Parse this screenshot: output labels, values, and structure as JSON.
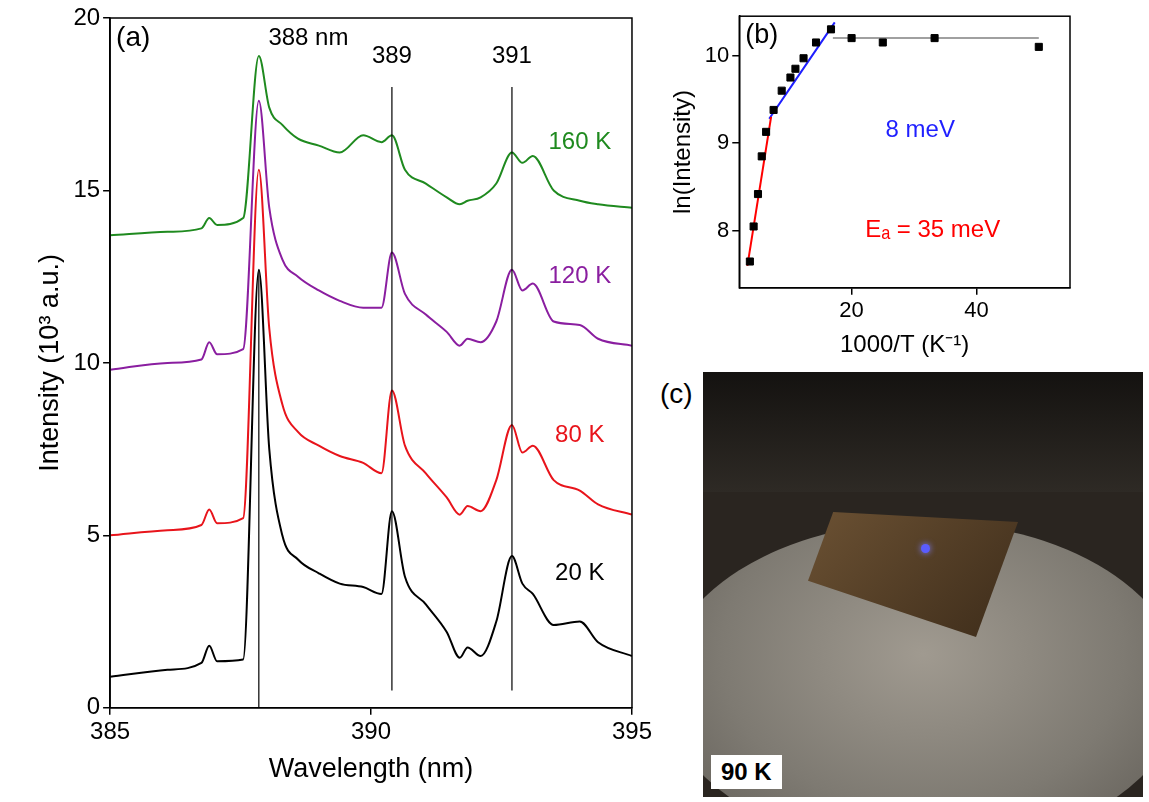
{
  "chart_data": [
    {
      "panel_label": "(a)",
      "type": "line",
      "x_label": "Wavelength (nm)",
      "y_label": "Intensity (10³ a.u.)",
      "x": [
        385,
        386.1,
        386.75,
        386.9,
        387.05,
        387.55,
        387.85,
        388.05,
        388.3,
        388.6,
        389.0,
        389.4,
        389.85,
        390.2,
        390.4,
        390.65,
        391.05,
        391.45,
        391.7,
        391.85,
        392.1,
        392.4,
        392.7,
        392.9,
        393.1,
        393.5,
        394.0,
        394.35,
        395
      ],
      "series": [
        {
          "name": "20 K",
          "color": "#000000",
          "values": [
            0.9,
            1.1,
            1.3,
            1.8,
            1.35,
            1.4,
            12.7,
            7.5,
            5.0,
            4.3,
            3.9,
            3.6,
            3.5,
            3.3,
            5.7,
            3.8,
            3.0,
            2.2,
            1.45,
            1.75,
            1.5,
            2.5,
            4.4,
            3.6,
            3.3,
            2.4,
            2.5,
            1.9,
            1.5
          ]
        },
        {
          "name": "80 K",
          "color": "#e8141b",
          "values": [
            5.0,
            5.15,
            5.3,
            5.75,
            5.35,
            5.5,
            15.6,
            11.0,
            8.8,
            8.0,
            7.6,
            7.3,
            7.1,
            6.8,
            9.2,
            7.6,
            6.8,
            6.1,
            5.6,
            5.85,
            5.7,
            6.6,
            8.2,
            7.4,
            7.6,
            6.6,
            6.3,
            5.9,
            5.6
          ]
        },
        {
          "name": "120 K",
          "color": "#8a1ea0",
          "values": [
            9.8,
            10.0,
            10.1,
            10.6,
            10.25,
            10.4,
            17.6,
            14.5,
            13.0,
            12.5,
            12.1,
            11.8,
            11.6,
            11.6,
            13.2,
            12.0,
            11.4,
            10.9,
            10.5,
            10.7,
            10.6,
            11.2,
            12.7,
            12.1,
            12.3,
            11.2,
            11.1,
            10.7,
            10.5
          ]
        },
        {
          "name": "160 K",
          "color": "#1f8a1f",
          "values": [
            13.7,
            13.8,
            13.9,
            14.2,
            14.0,
            14.2,
            18.9,
            17.4,
            16.9,
            16.5,
            16.3,
            16.1,
            16.6,
            16.4,
            16.6,
            15.6,
            15.2,
            14.8,
            14.6,
            14.7,
            14.8,
            15.2,
            16.1,
            15.8,
            16.0,
            15.0,
            14.7,
            14.6,
            14.5
          ]
        }
      ],
      "xlim": [
        385,
        395
      ],
      "xticks": [
        385,
        390,
        395
      ],
      "ylim": [
        0,
        20
      ],
      "yticks": [
        0,
        5,
        10,
        15,
        20
      ],
      "grid": false,
      "reference_lines": [
        {
          "x": 387.85,
          "y": [
            0,
            12.7
          ],
          "color": "#000000"
        },
        {
          "x": 390.4,
          "y": [
            0.5,
            18.0
          ],
          "color": "#000000"
        },
        {
          "x": 392.7,
          "y": [
            0.5,
            18.0
          ],
          "color": "#000000"
        }
      ],
      "annotations": [
        {
          "text": "388 nm",
          "x": 388.8,
          "y": 19.4,
          "color": "#000000"
        },
        {
          "text": "389",
          "x": 390.4,
          "y": 18.9,
          "color": "#000000"
        },
        {
          "text": "391",
          "x": 392.7,
          "y": 18.9,
          "color": "#000000"
        },
        {
          "text": "160 K",
          "x": 394.0,
          "y": 16.4,
          "color": "#1f8a1f"
        },
        {
          "text": "120 K",
          "x": 394.0,
          "y": 12.5,
          "color": "#8a1ea0"
        },
        {
          "text": "80 K",
          "x": 394.0,
          "y": 7.9,
          "color": "#e8141b"
        },
        {
          "text": "20 K",
          "x": 394.0,
          "y": 3.9,
          "color": "#000000"
        }
      ]
    },
    {
      "panel_label": "(b)",
      "type": "scatter",
      "x_label": "1000/T (K⁻¹)",
      "y_label": "ln(Intensity)",
      "series": [
        {
          "type": "line",
          "color": "#a0a0a0",
          "x": [
            17,
            50
          ],
          "values": [
            10.2,
            10.2
          ]
        },
        {
          "type": "line",
          "color": "#ff0000",
          "x": [
            3.3,
            7.1
          ],
          "values": [
            7.6,
            9.3
          ]
        },
        {
          "type": "line",
          "color": "#1f1fff",
          "x": [
            6.8,
            17.3
          ],
          "values": [
            9.28,
            10.38
          ]
        },
        {
          "type": "scatter",
          "marker": "square",
          "color": "#000000",
          "x": [
            3.7,
            4.3,
            5.0,
            5.6,
            6.3,
            7.5,
            8.8,
            10.2,
            11.0,
            12.3,
            14.3,
            16.7,
            20,
            25,
            33.3,
            50
          ],
          "values": [
            7.65,
            8.05,
            8.42,
            8.85,
            9.13,
            9.38,
            9.6,
            9.75,
            9.85,
            9.97,
            10.15,
            10.3,
            10.2,
            10.15,
            10.2,
            10.1
          ]
        }
      ],
      "xlim": [
        2,
        55
      ],
      "xticks": [
        20,
        40
      ],
      "ylim": [
        7.35,
        10.45
      ],
      "yticks": [
        8,
        9,
        10
      ],
      "grid": false,
      "annotations": [
        {
          "text": "8 meV",
          "x": 31,
          "y": 9.15,
          "color": "#1f1fff"
        },
        {
          "text": "Eₐ = 35 meV",
          "x": 33,
          "y": 8.0,
          "color": "#ff0000"
        }
      ]
    }
  ],
  "photo": {
    "panel_label": "(c)",
    "caption": "90 K"
  }
}
